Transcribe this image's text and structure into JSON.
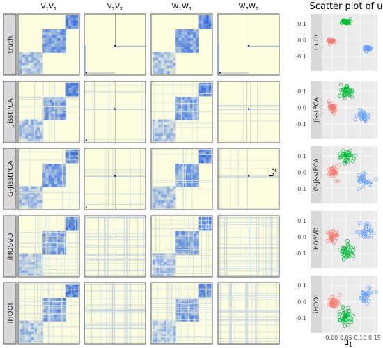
{
  "figure": {
    "column_headers": [
      {
        "b1": "V",
        "s1": "1",
        "b2": "V",
        "s2": "1"
      },
      {
        "b1": "V",
        "s1": "2",
        "b2": "V",
        "s2": "2"
      },
      {
        "b1": "W",
        "s1": "1",
        "b2": "W",
        "s2": "1"
      },
      {
        "b1": "W",
        "s1": "2",
        "b2": "W",
        "s2": "2"
      }
    ],
    "row_labels": [
      "truth",
      "JisstPCA",
      "G-JisstPCA",
      "iHOSVD",
      "iHOOI"
    ],
    "heatmap_colors": {
      "low": "#fdfde0",
      "high": "#1f5fe0"
    }
  },
  "chart_data": {
    "type": "scatter",
    "title": "Scatter plot of u",
    "xlabel_base": "u",
    "xlabel_sub": "1",
    "ylabel_base": "u",
    "ylabel_sub": "2",
    "xlim": [
      -0.035,
      0.16
    ],
    "ylim": [
      -0.19,
      0.16
    ],
    "x_ticks": [
      0.0,
      0.05,
      0.1,
      0.15
    ],
    "x_tick_labels": [
      "0.00",
      "0.05",
      "0.10",
      "0.15"
    ],
    "y_ticks": [
      -0.1,
      0.0,
      0.1
    ],
    "y_tick_labels": [
      "-0.1",
      "0.0",
      "0.1"
    ],
    "grid": true,
    "series_colors": [
      "#f8766d",
      "#00ba38",
      "#619cff"
    ],
    "panels": [
      {
        "label": "truth",
        "clusters": [
          {
            "cx": 0.0,
            "cy": -0.005,
            "n": 25,
            "sx": 0.006,
            "sy": 0.006
          },
          {
            "cx": 0.05,
            "cy": 0.11,
            "n": 35,
            "sx": 0.008,
            "sy": 0.007
          },
          {
            "cx": 0.125,
            "cy": -0.05,
            "n": 25,
            "sx": 0.006,
            "sy": 0.006
          }
        ]
      },
      {
        "label": "JisstPCA",
        "clusters": [
          {
            "cx": 0.003,
            "cy": 0.0,
            "n": 30,
            "sx": 0.008,
            "sy": 0.018
          },
          {
            "cx": 0.05,
            "cy": 0.1,
            "n": 40,
            "sx": 0.012,
            "sy": 0.018
          },
          {
            "cx": 0.11,
            "cy": -0.05,
            "n": 30,
            "sx": 0.012,
            "sy": 0.018
          }
        ]
      },
      {
        "label": "G-JisstPCA",
        "clusters": [
          {
            "cx": 0.005,
            "cy": 0.0,
            "n": 30,
            "sx": 0.009,
            "sy": 0.02
          },
          {
            "cx": 0.05,
            "cy": 0.1,
            "n": 40,
            "sx": 0.012,
            "sy": 0.02
          },
          {
            "cx": 0.115,
            "cy": -0.05,
            "n": 30,
            "sx": 0.012,
            "sy": 0.02
          }
        ]
      },
      {
        "label": "iHOSVD",
        "clusters": [
          {
            "cx": 0.005,
            "cy": 0.0,
            "n": 30,
            "sx": 0.01,
            "sy": 0.02
          },
          {
            "cx": 0.05,
            "cy": -0.09,
            "n": 40,
            "sx": 0.012,
            "sy": 0.025
          },
          {
            "cx": 0.12,
            "cy": 0.03,
            "n": 30,
            "sx": 0.012,
            "sy": 0.025
          }
        ]
      },
      {
        "label": "iHOOI",
        "clusters": [
          {
            "cx": 0.005,
            "cy": 0.0,
            "n": 30,
            "sx": 0.01,
            "sy": 0.02
          },
          {
            "cx": 0.05,
            "cy": -0.09,
            "n": 40,
            "sx": 0.012,
            "sy": 0.025
          },
          {
            "cx": 0.12,
            "cy": 0.03,
            "n": 30,
            "sx": 0.012,
            "sy": 0.025
          }
        ]
      }
    ]
  }
}
